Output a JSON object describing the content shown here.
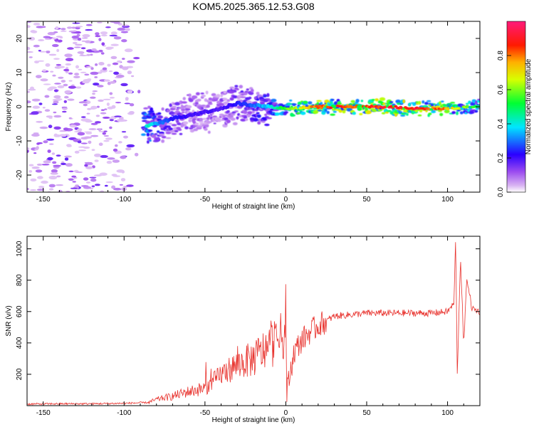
{
  "title": "KOM5.2025.365.12.53.G08",
  "chart_data": [
    {
      "type": "heatmap",
      "title": "",
      "xlabel": "Height of straight line (km)",
      "ylabel": "Frequency (Hz)",
      "xlim": [
        -160,
        120
      ],
      "ylim": [
        -25,
        25
      ],
      "xticks": [
        "-150",
        "-100",
        "-50",
        "0",
        "50",
        "100"
      ],
      "yticks": [
        "-20",
        "-10",
        "0",
        "10",
        "20"
      ],
      "colorbar": {
        "label": "Normalized spectral amplitude",
        "range": [
          0,
          1
        ],
        "ticks": [
          "0.0",
          "0.2",
          "0.4",
          "0.6",
          "0.8"
        ]
      },
      "ridge": {
        "x": [
          -85,
          -80,
          -70,
          -60,
          -50,
          -40,
          -30,
          -20,
          -10,
          0,
          20,
          40,
          60,
          80,
          100,
          120
        ],
        "freq": [
          -5.5,
          -5,
          -3.5,
          -2.5,
          -1.5,
          -0.5,
          1,
          0.5,
          0,
          -0.5,
          0,
          0,
          0,
          -0.5,
          -0.5,
          0
        ],
        "amplitude": [
          0.45,
          0.35,
          0.25,
          0.22,
          0.2,
          0.2,
          0.25,
          0.3,
          0.4,
          0.6,
          0.85,
          0.9,
          0.92,
          0.95,
          0.8,
          0.5
        ]
      },
      "noise_region_x": [
        -160,
        -95
      ]
    },
    {
      "type": "line",
      "title": "",
      "xlabel": "Height of straight line (km)",
      "ylabel": "SNR (v/v)",
      "xlim": [
        -160,
        120
      ],
      "ylim": [
        0,
        1080
      ],
      "xticks": [
        "-150",
        "-100",
        "-50",
        "0",
        "50",
        "100"
      ],
      "yticks": [
        "200",
        "400",
        "600",
        "800",
        "1000"
      ],
      "color": "#e8322d",
      "series": [
        {
          "name": "SNR",
          "x": [
            -160,
            -140,
            -120,
            -100,
            -85,
            -80,
            -70,
            -60,
            -50,
            -45,
            -40,
            -35,
            -30,
            -25,
            -20,
            -15,
            -10,
            -5,
            -1,
            0,
            0.5,
            5,
            10,
            15,
            20,
            25,
            30,
            40,
            50,
            60,
            70,
            80,
            90,
            100,
            104,
            105,
            106,
            108,
            110,
            112,
            115,
            120
          ],
          "y": [
            10,
            12,
            12,
            15,
            20,
            40,
            60,
            90,
            110,
            150,
            200,
            230,
            260,
            280,
            300,
            340,
            380,
            420,
            450,
            700,
            80,
            340,
            420,
            470,
            510,
            540,
            570,
            580,
            590,
            590,
            590,
            590,
            590,
            600,
            650,
            1080,
            190,
            950,
            380,
            820,
            620,
            600
          ]
        }
      ]
    }
  ]
}
